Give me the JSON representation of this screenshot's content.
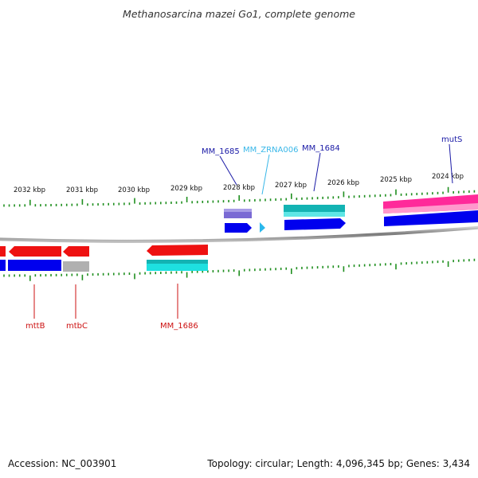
{
  "title": "Methanosarcina mazei Go1, complete genome",
  "accession_text": "Accession: NC_003901",
  "info_text": "Topology: circular; Length: 4,096,345 bp; Genes: 3,434",
  "tick_labels": [
    "2032 kbp",
    "2031 kbp",
    "2030 kbp",
    "2029 kbp",
    "2028 kbp",
    "2027 kbp",
    "2026 kbp",
    "2025 kbp",
    "2024 kbp"
  ],
  "gene_labels": [
    {
      "text": "MM_1685",
      "color": "#1a1aa6"
    },
    {
      "text": "MM_ZRNA006",
      "color": "#39b7e8"
    },
    {
      "text": "MM_1684",
      "color": "#1a1aa6"
    },
    {
      "text": "mutS",
      "color": "#1a1aa6"
    },
    {
      "text": "mttB",
      "color": "#cc1111"
    },
    {
      "text": "mtbC",
      "color": "#cc1111"
    },
    {
      "text": "MM_1686",
      "color": "#cc1111"
    }
  ],
  "colors": {
    "backbone": "#8a8a8a",
    "tick": "#1f8f1f",
    "forward_cds": "#0000ee",
    "reverse_cds": "#ee1111",
    "teal": "#13b3b3",
    "cyan": "#1ee0e0",
    "purple": "#7a6ad4",
    "pink": "#ff2a9a",
    "grey": "#b0b0b0",
    "rna": "#2ab8ec"
  }
}
